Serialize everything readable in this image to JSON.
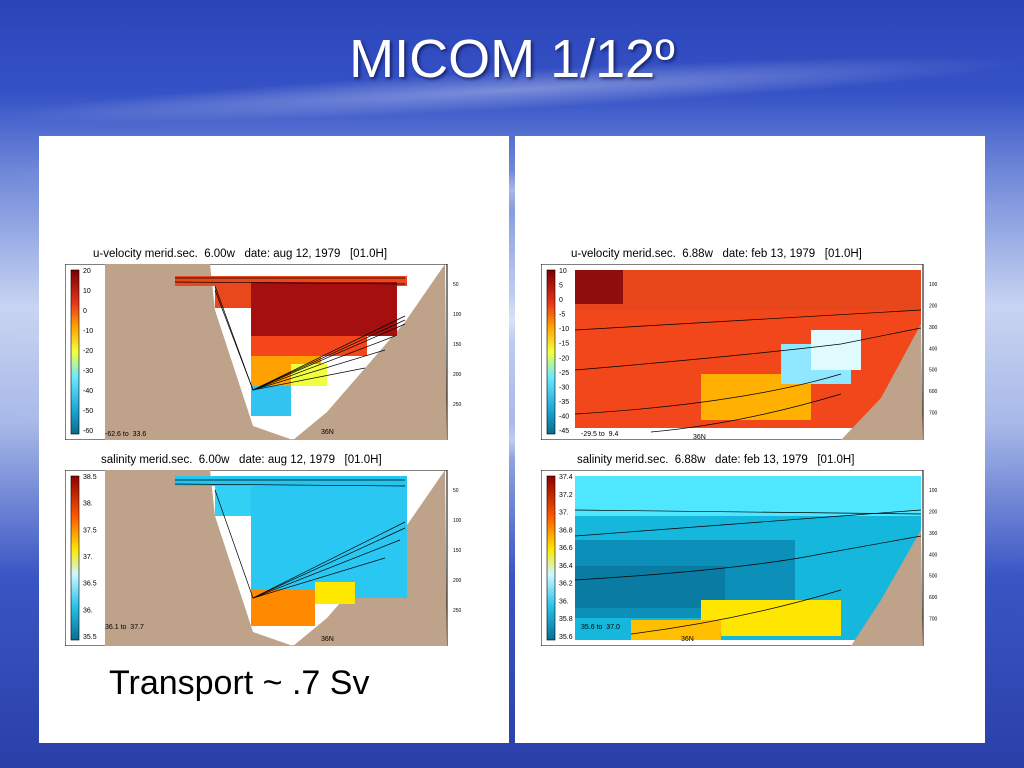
{
  "slide": {
    "title": "MICOM 1/12º",
    "transport": "Transport ~ .7 Sv"
  },
  "colors": {
    "land": "#bfa28a",
    "contour": "#000000",
    "panel_bg": "#ffffff"
  },
  "chart_data": [
    {
      "type": "heatmap",
      "title": "u-velocity merid.sec.  6.00w   date: aug 12, 1979   [01.0H]",
      "colorbar_ticks": [
        "20",
        "10",
        "0",
        "-10",
        "-20",
        "-30",
        "-40",
        "-50",
        "-60"
      ],
      "range_label": "-62.6 to  33.6",
      "x_label": "36N",
      "depth_ticks": [
        "50",
        "100",
        "150",
        "200",
        "250"
      ]
    },
    {
      "type": "heatmap",
      "title": "salinity merid.sec.  6.00w   date: aug 12, 1979   [01.0H]",
      "colorbar_ticks": [
        "38.5",
        "38.",
        "37.5",
        "37.",
        "36.5",
        "36.",
        "35.5"
      ],
      "range_label": "36.1 to  37.7",
      "x_label": "36N",
      "depth_ticks": [
        "50",
        "100",
        "150",
        "200",
        "250"
      ]
    },
    {
      "type": "heatmap",
      "title": "u-velocity merid.sec.  6.88w   date: feb 13, 1979   [01.0H]",
      "colorbar_ticks": [
        "10",
        "5",
        "0",
        "-5",
        "-10",
        "-15",
        "-20",
        "-25",
        "-30",
        "-35",
        "-40",
        "-45"
      ],
      "range_label": "-29.5 to  9.4",
      "x_label": "36N",
      "depth_ticks": [
        "100",
        "200",
        "300",
        "400",
        "500",
        "600",
        "700"
      ]
    },
    {
      "type": "heatmap",
      "title": "salinity merid.sec.  6.88w   date: feb 13, 1979   [01.0H]",
      "colorbar_ticks": [
        "37.4",
        "37.2",
        "37.",
        "36.8",
        "36.6",
        "36.4",
        "36.2",
        "36.",
        "35.8",
        "35.6"
      ],
      "range_label": "35.6 to  37.0",
      "x_label": "36N",
      "depth_ticks": [
        "100",
        "200",
        "300",
        "400",
        "500",
        "600",
        "700"
      ]
    }
  ]
}
